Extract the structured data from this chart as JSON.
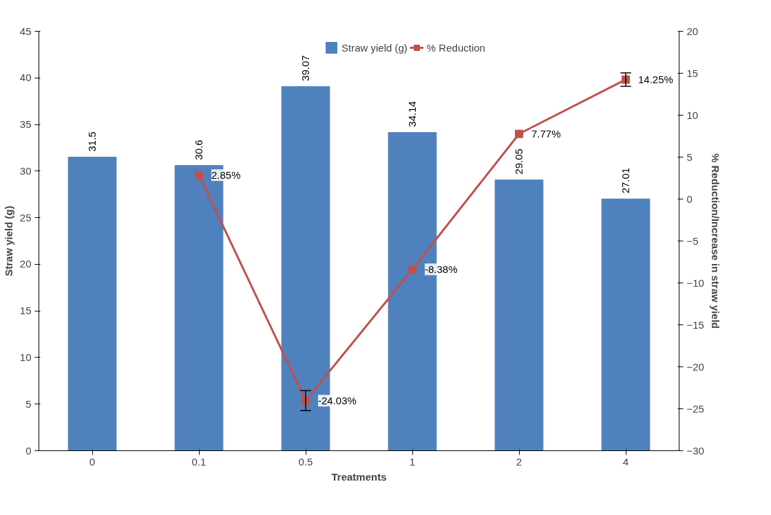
{
  "chart_data": {
    "type": "bar",
    "xlabel": "Treatments",
    "ylabel": "Straw yield (g)",
    "y2label": "% Reduction/Increase in straw yield",
    "categories": [
      "0",
      "0.1",
      "0.5",
      "1",
      "2",
      "4"
    ],
    "series": [
      {
        "name": "Straw yield (g)",
        "color": "#4f81bd",
        "values": [
          31.5,
          30.6,
          39.07,
          34.14,
          29.05,
          27.01
        ],
        "data_labels": true
      },
      {
        "name": "% Reduction",
        "type": "line",
        "axis": "y2",
        "color": "#c0504d",
        "marker": "square",
        "line_style": "solid",
        "values": [
          null,
          2.85,
          -24.03,
          -8.38,
          7.77,
          14.25
        ],
        "value_labels": [
          null,
          "2.85%",
          "-24.03%",
          "-8.38%",
          "7.77%",
          "14.25%"
        ],
        "errors": [
          null,
          null,
          1.2,
          null,
          null,
          0.8
        ]
      }
    ],
    "ylim": [
      0,
      45
    ],
    "yticks": [
      0,
      5,
      10,
      15,
      20,
      25,
      30,
      35,
      40,
      45
    ],
    "y2lim": [
      -30,
      20
    ],
    "y2ticks": [
      -30,
      -25,
      -20,
      -15,
      -10,
      -5,
      0,
      5,
      10,
      15,
      20
    ],
    "grid": false,
    "legend": "top"
  }
}
